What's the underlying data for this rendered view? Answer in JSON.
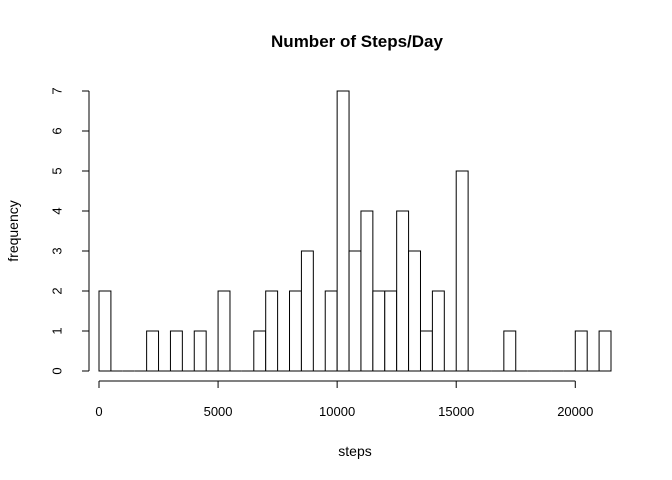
{
  "chart_data": {
    "type": "bar",
    "title": "Number of Steps/Day",
    "xlabel": "steps",
    "ylabel": "frequency",
    "bin_width": 500,
    "xlim": [
      0,
      21500
    ],
    "ylim": [
      0,
      7
    ],
    "x_ticks": [
      0,
      5000,
      10000,
      15000,
      20000
    ],
    "y_ticks": [
      0,
      1,
      2,
      3,
      4,
      5,
      6,
      7
    ],
    "bin_starts": [
      0,
      500,
      1000,
      1500,
      2000,
      2500,
      3000,
      3500,
      4000,
      4500,
      5000,
      5500,
      6000,
      6500,
      7000,
      7500,
      8000,
      8500,
      9000,
      9500,
      10000,
      10500,
      11000,
      11500,
      12000,
      12500,
      13000,
      13500,
      14000,
      14500,
      15000,
      15500,
      16000,
      16500,
      17000,
      17500,
      18000,
      18500,
      19000,
      19500,
      20000,
      20500,
      21000
    ],
    "values": [
      2,
      0,
      0,
      0,
      1,
      0,
      1,
      0,
      1,
      0,
      2,
      0,
      0,
      1,
      2,
      0,
      2,
      3,
      0,
      2,
      7,
      3,
      4,
      2,
      2,
      4,
      3,
      1,
      2,
      0,
      5,
      0,
      0,
      0,
      1,
      0,
      0,
      0,
      0,
      0,
      1,
      0,
      1
    ],
    "grid": false,
    "legend": "none",
    "bar_fill": "#ffffff",
    "bar_stroke": "#000000"
  }
}
